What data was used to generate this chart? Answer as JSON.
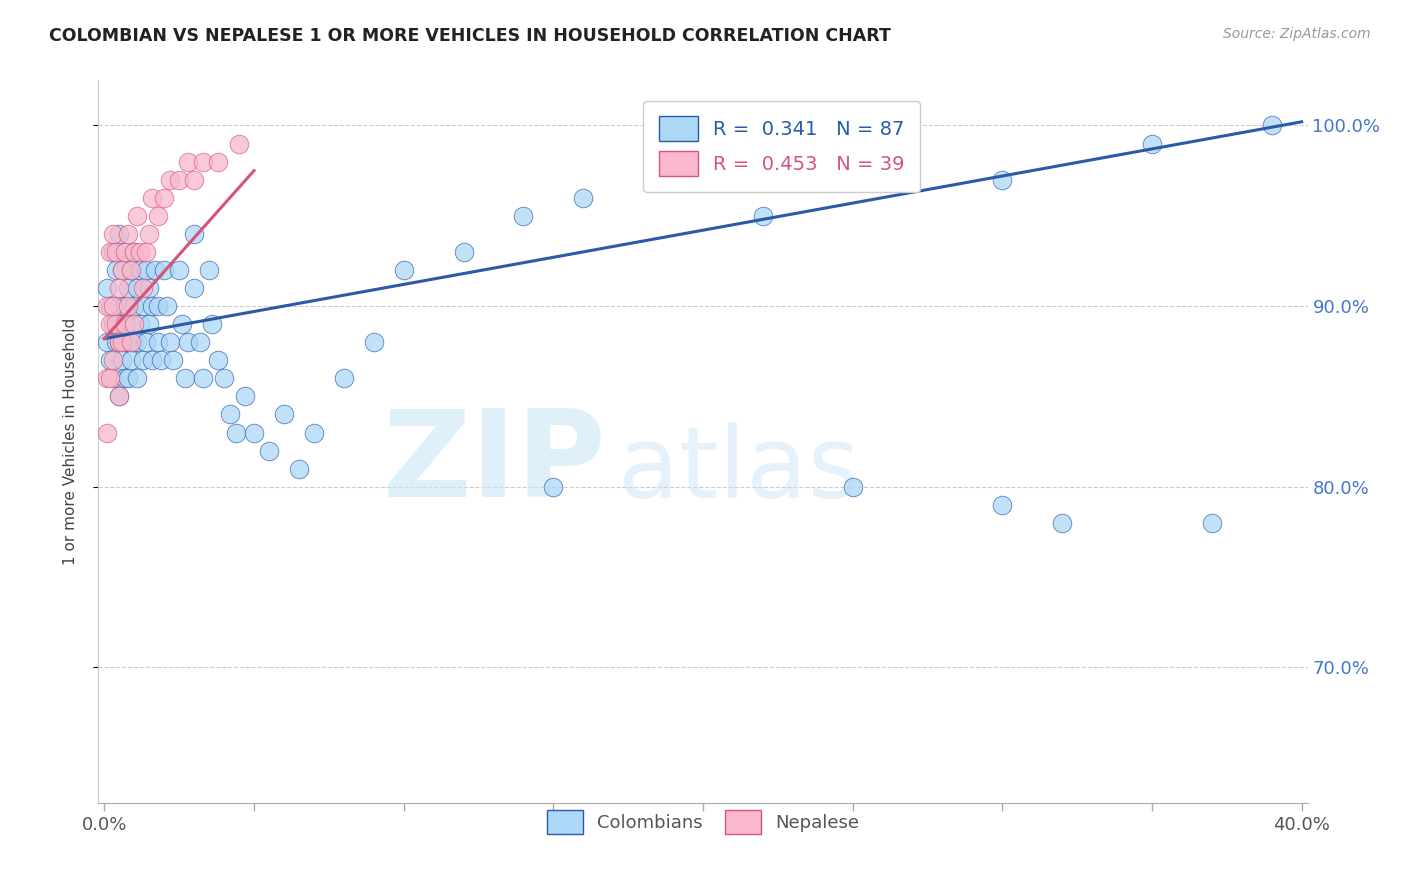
{
  "title": "COLOMBIAN VS NEPALESE 1 OR MORE VEHICLES IN HOUSEHOLD CORRELATION CHART",
  "source": "Source: ZipAtlas.com",
  "ylabel": "1 or more Vehicles in Household",
  "xlim": [
    -0.002,
    0.402
  ],
  "ylim": [
    0.625,
    1.025
  ],
  "xticks": [
    0.0,
    0.05,
    0.1,
    0.15,
    0.2,
    0.25,
    0.3,
    0.35,
    0.4
  ],
  "ytick_positions": [
    0.7,
    0.8,
    0.9,
    1.0
  ],
  "ytick_labels": [
    "70.0%",
    "80.0%",
    "90.0%",
    "100.0%"
  ],
  "legend_R_blue": "0.341",
  "legend_N_blue": "87",
  "legend_R_pink": "0.453",
  "legend_N_pink": "39",
  "blue_color": "#ADD8F7",
  "pink_color": "#F9B8CB",
  "trend_blue": "#2B5BA8",
  "trend_pink": "#D4547A",
  "watermark_zip": "ZIP",
  "watermark_atlas": "atlas",
  "blue_scatter_x": [
    0.001,
    0.001,
    0.002,
    0.002,
    0.003,
    0.003,
    0.003,
    0.004,
    0.004,
    0.005,
    0.005,
    0.005,
    0.005,
    0.006,
    0.006,
    0.006,
    0.007,
    0.007,
    0.007,
    0.007,
    0.008,
    0.008,
    0.008,
    0.009,
    0.009,
    0.009,
    0.01,
    0.01,
    0.01,
    0.011,
    0.011,
    0.011,
    0.012,
    0.012,
    0.013,
    0.013,
    0.014,
    0.014,
    0.015,
    0.015,
    0.016,
    0.016,
    0.017,
    0.018,
    0.018,
    0.019,
    0.02,
    0.021,
    0.022,
    0.023,
    0.025,
    0.026,
    0.027,
    0.028,
    0.03,
    0.03,
    0.032,
    0.033,
    0.035,
    0.036,
    0.038,
    0.04,
    0.042,
    0.044,
    0.047,
    0.05,
    0.055,
    0.06,
    0.065,
    0.07,
    0.08,
    0.09,
    0.1,
    0.12,
    0.14,
    0.16,
    0.19,
    0.22,
    0.26,
    0.3,
    0.35,
    0.39,
    0.15,
    0.25,
    0.3,
    0.32,
    0.37
  ],
  "blue_scatter_y": [
    0.91,
    0.88,
    0.9,
    0.87,
    0.93,
    0.89,
    0.86,
    0.92,
    0.88,
    0.94,
    0.9,
    0.88,
    0.85,
    0.92,
    0.89,
    0.87,
    0.93,
    0.9,
    0.88,
    0.86,
    0.91,
    0.88,
    0.86,
    0.92,
    0.89,
    0.87,
    0.93,
    0.9,
    0.88,
    0.91,
    0.88,
    0.86,
    0.92,
    0.89,
    0.9,
    0.87,
    0.92,
    0.88,
    0.91,
    0.89,
    0.9,
    0.87,
    0.92,
    0.88,
    0.9,
    0.87,
    0.92,
    0.9,
    0.88,
    0.87,
    0.92,
    0.89,
    0.86,
    0.88,
    0.94,
    0.91,
    0.88,
    0.86,
    0.92,
    0.89,
    0.87,
    0.86,
    0.84,
    0.83,
    0.85,
    0.83,
    0.82,
    0.84,
    0.81,
    0.83,
    0.86,
    0.88,
    0.92,
    0.93,
    0.95,
    0.96,
    0.97,
    0.95,
    0.97,
    0.97,
    0.99,
    1.0,
    0.8,
    0.8,
    0.79,
    0.78,
    0.78
  ],
  "pink_scatter_x": [
    0.001,
    0.001,
    0.001,
    0.002,
    0.002,
    0.002,
    0.003,
    0.003,
    0.003,
    0.004,
    0.004,
    0.005,
    0.005,
    0.005,
    0.006,
    0.006,
    0.007,
    0.007,
    0.008,
    0.008,
    0.009,
    0.009,
    0.01,
    0.01,
    0.011,
    0.012,
    0.013,
    0.014,
    0.015,
    0.016,
    0.018,
    0.02,
    0.022,
    0.025,
    0.028,
    0.03,
    0.033,
    0.038,
    0.045
  ],
  "pink_scatter_y": [
    0.9,
    0.86,
    0.83,
    0.93,
    0.89,
    0.86,
    0.94,
    0.9,
    0.87,
    0.93,
    0.89,
    0.91,
    0.88,
    0.85,
    0.92,
    0.88,
    0.93,
    0.89,
    0.94,
    0.9,
    0.92,
    0.88,
    0.93,
    0.89,
    0.95,
    0.93,
    0.91,
    0.93,
    0.94,
    0.96,
    0.95,
    0.96,
    0.97,
    0.97,
    0.98,
    0.97,
    0.98,
    0.98,
    0.99
  ],
  "blue_trend_x0": 0.0,
  "blue_trend_y0": 0.882,
  "blue_trend_x1": 0.4,
  "blue_trend_y1": 1.002,
  "pink_trend_x0": 0.0,
  "pink_trend_y0": 0.882,
  "pink_trend_x1": 0.05,
  "pink_trend_y1": 0.975
}
